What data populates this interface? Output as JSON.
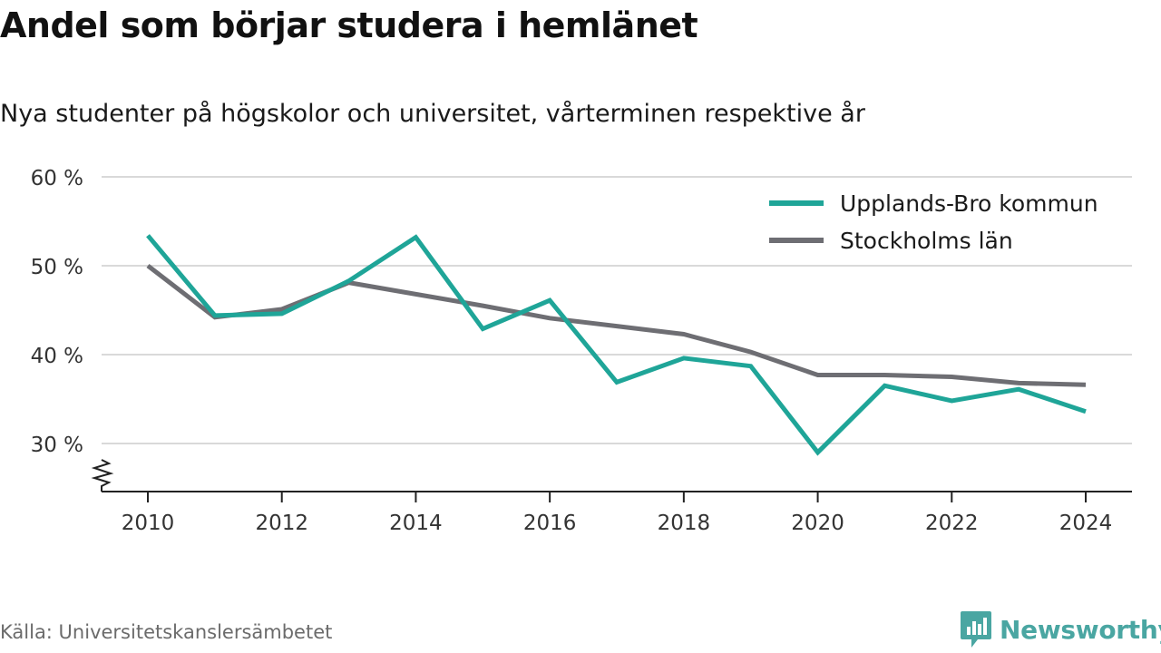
{
  "title": "Andel som börjar studera i hemlänet",
  "subtitle": "Nya studenter på högskolor och universitet, vårterminen respektive år",
  "source": "Källa: Universitetskanslersämbetet",
  "brand": {
    "name": "Newsworthy",
    "icon": "newsworthy-logo-icon",
    "color": "#4aa6a2"
  },
  "chart_data": {
    "type": "line",
    "title": "Andel som börjar studera i hemlänet",
    "subtitle": "Nya studenter på högskolor och universitet, vårterminen respektive år",
    "x": [
      2010,
      2011,
      2012,
      2013,
      2014,
      2015,
      2016,
      2017,
      2018,
      2019,
      2020,
      2021,
      2022,
      2023,
      2024
    ],
    "xticks": [
      2010,
      2012,
      2014,
      2016,
      2018,
      2020,
      2022,
      2024
    ],
    "yticks": [
      30,
      40,
      50,
      60
    ],
    "ytick_labels": [
      "30 %",
      "40 %",
      "50 %",
      "60 %"
    ],
    "ylim": [
      25,
      60
    ],
    "y_axis_break": true,
    "grid": true,
    "legend_position": "top-right",
    "series": [
      {
        "name": "Upplands-Bro kommun",
        "color": "#1fa598",
        "values": [
          53.4,
          44.4,
          44.6,
          48.3,
          53.2,
          42.9,
          46.1,
          36.9,
          39.6,
          38.7,
          29.0,
          36.5,
          34.8,
          36.1,
          33.6
        ]
      },
      {
        "name": "Stockholms län",
        "color": "#6e6e73",
        "values": [
          50.0,
          44.2,
          45.1,
          48.1,
          46.8,
          45.5,
          44.1,
          43.2,
          42.3,
          40.3,
          37.7,
          37.7,
          37.5,
          36.8,
          36.6
        ]
      }
    ]
  }
}
